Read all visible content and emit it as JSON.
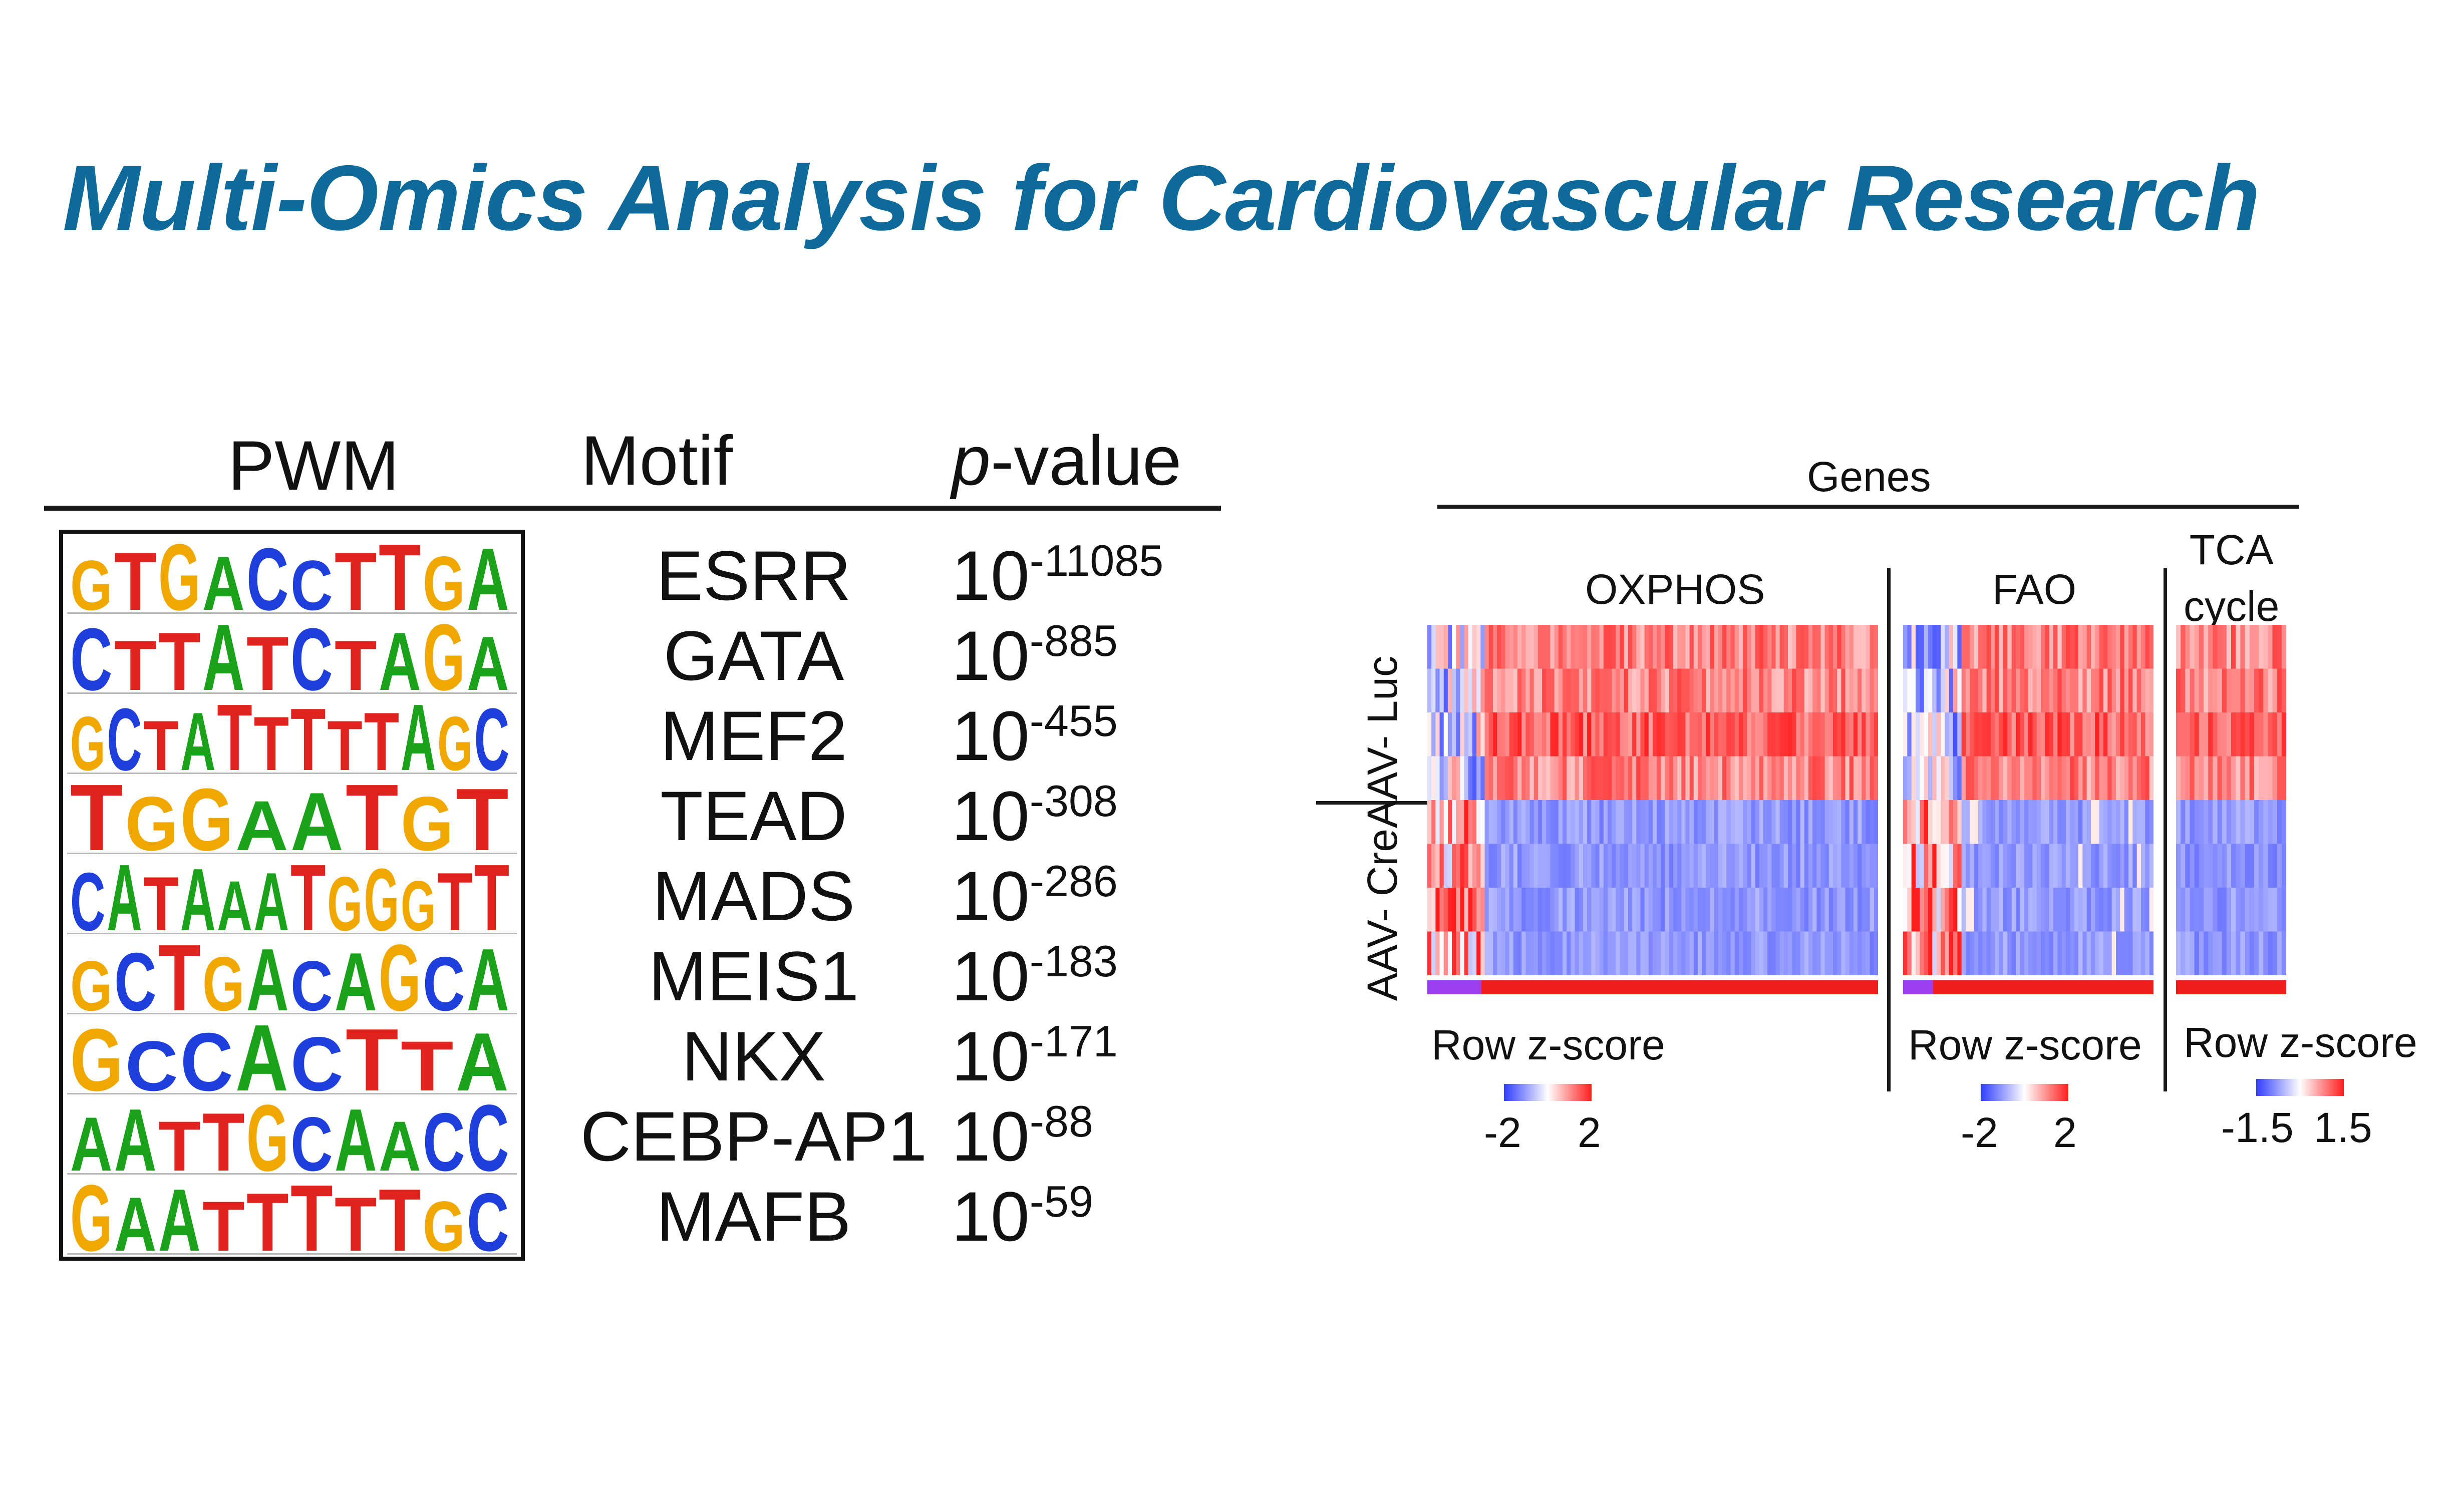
{
  "title": "Multi-Omics Analysis for Cardiovascular Research",
  "motif_table": {
    "headers": {
      "pwm": "PWM",
      "motif": "Motif",
      "p_prefix": "p",
      "p_suffix": "-value"
    },
    "rows": [
      {
        "logo": "GTGACCTTGA",
        "motif": "ESRR",
        "base": "10",
        "exp": "-11085"
      },
      {
        "logo": "CTTATCTAGA",
        "motif": "GATA",
        "base": "10",
        "exp": "-885"
      },
      {
        "logo": "GCTATTTTTAGC",
        "motif": "MEF2",
        "base": "10",
        "exp": "-455"
      },
      {
        "logo": "TGGAATGT",
        "motif": "TEAD",
        "base": "10",
        "exp": "-308"
      },
      {
        "logo": "CATAAATGGGTT",
        "motif": "MADS",
        "base": "10",
        "exp": "-286"
      },
      {
        "logo": "GCTGACAGCA",
        "motif": "MEIS1",
        "base": "10",
        "exp": "-183"
      },
      {
        "logo": "GCCACTTA",
        "motif": "NKX",
        "base": "10",
        "exp": "-171"
      },
      {
        "logo": "AATTGCAACC",
        "motif": "CEBP-AP1",
        "base": "10",
        "exp": "-88"
      },
      {
        "logo": "GAATTTTTGC",
        "motif": "MAFB",
        "base": "10",
        "exp": "-59"
      }
    ],
    "base_colors": {
      "A": "#1aa31a",
      "C": "#1f3fdc",
      "G": "#f0a800",
      "T": "#e0231c"
    }
  },
  "heatmap": {
    "genes_label": "Genes",
    "groups": [
      {
        "label": "AAV-\nLuc"
      },
      {
        "label": "AAV-\nCre"
      }
    ],
    "panels": [
      {
        "label": "OXPHOS",
        "scale_label": "Row z-score",
        "scale_min": "-2",
        "scale_max": "2"
      },
      {
        "label": "FAO",
        "scale_label": "Row z-score",
        "scale_min": "-2",
        "scale_max": "2"
      },
      {
        "label": "TCA\ncycle",
        "scale_label": "Row z-score",
        "scale_min": "-1.5",
        "scale_max": "1.5"
      }
    ],
    "colors": {
      "low": "#2f3cff",
      "mid": "#ffffff",
      "high": "#ff1e1e",
      "annot_purple": "#9a3ff0",
      "annot_red": "#f01d1d"
    }
  }
}
